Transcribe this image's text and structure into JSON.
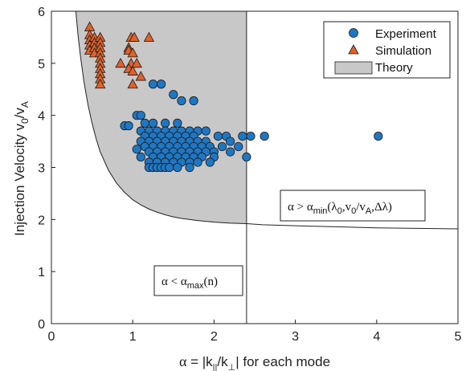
{
  "chart_data": {
    "type": "scatter",
    "xlabel": "α = |k||/k⊥| for each mode",
    "ylabel": "Injection Velocity v0/vA",
    "xlim": [
      0,
      5
    ],
    "ylim": [
      0,
      6
    ],
    "xticks": [
      "0",
      "1",
      "2",
      "3",
      "4",
      "5"
    ],
    "yticks": [
      "0",
      "1",
      "2",
      "3",
      "4",
      "5",
      "6"
    ],
    "grid": false,
    "legend_placement": "top-right",
    "legend": [
      "Experiment",
      "Simulation",
      "Theory"
    ],
    "colors": {
      "experiment_fill": "#1f77c4",
      "simulation_fill": "#e0622a",
      "theory_fill": "#c8c8c8",
      "edge": "#1a1a1a"
    },
    "theory_region": {
      "alpha_max": 2.4,
      "boundary_curve": {
        "alpha": [
          0.3,
          0.33,
          0.36,
          0.4,
          0.45,
          0.5,
          0.55,
          0.6,
          0.7,
          0.8,
          0.9,
          1.0,
          1.1,
          1.2,
          1.3,
          1.4,
          1.5,
          1.6,
          1.8,
          2.0,
          2.2,
          2.4,
          2.6,
          3.0,
          3.5,
          4.0,
          4.5,
          5.0
        ],
        "velocity": [
          6.0,
          5.5,
          5.1,
          4.65,
          4.2,
          3.85,
          3.55,
          3.3,
          2.95,
          2.7,
          2.52,
          2.38,
          2.28,
          2.2,
          2.14,
          2.09,
          2.05,
          2.02,
          1.98,
          1.95,
          1.93,
          1.92,
          1.9,
          1.88,
          1.86,
          1.84,
          1.83,
          1.82
        ]
      }
    },
    "annotations": [
      {
        "name": "alpha-min-label",
        "text": "α > αmin(λ0,v0/vA,Δλ)",
        "x": 3.75,
        "y": 2.0
      },
      {
        "name": "alpha-max-label",
        "text": "α < αmax(n)",
        "x": 1.8,
        "y": 0.65
      }
    ],
    "series": [
      {
        "name": "Experiment",
        "marker": "circle",
        "points": [
          [
            0.9,
            3.8
          ],
          [
            0.95,
            3.8
          ],
          [
            1.25,
            4.6
          ],
          [
            1.35,
            4.6
          ],
          [
            1.5,
            4.4
          ],
          [
            1.6,
            4.28
          ],
          [
            1.75,
            4.28
          ],
          [
            1.05,
            4.0
          ],
          [
            1.1,
            4.0
          ],
          [
            2.62,
            3.6
          ],
          [
            4.02,
            3.6
          ],
          [
            2.45,
            3.6
          ],
          [
            2.35,
            3.6
          ],
          [
            2.4,
            3.2
          ],
          [
            1.15,
            3.85
          ],
          [
            1.25,
            3.85
          ],
          [
            1.4,
            3.85
          ],
          [
            1.55,
            3.85
          ],
          [
            1.1,
            3.7
          ],
          [
            1.2,
            3.7
          ],
          [
            1.3,
            3.7
          ],
          [
            1.4,
            3.7
          ],
          [
            1.5,
            3.7
          ],
          [
            1.6,
            3.7
          ],
          [
            1.7,
            3.7
          ],
          [
            1.8,
            3.7
          ],
          [
            1.9,
            3.7
          ],
          [
            1.15,
            3.6
          ],
          [
            1.25,
            3.6
          ],
          [
            1.35,
            3.6
          ],
          [
            1.45,
            3.6
          ],
          [
            1.55,
            3.6
          ],
          [
            1.65,
            3.6
          ],
          [
            1.75,
            3.6
          ],
          [
            2.05,
            3.6
          ],
          [
            2.15,
            3.6
          ],
          [
            1.1,
            3.5
          ],
          [
            1.2,
            3.5
          ],
          [
            1.3,
            3.5
          ],
          [
            1.4,
            3.5
          ],
          [
            1.5,
            3.5
          ],
          [
            1.6,
            3.5
          ],
          [
            1.7,
            3.5
          ],
          [
            1.8,
            3.5
          ],
          [
            1.9,
            3.5
          ],
          [
            2.2,
            3.5
          ],
          [
            1.15,
            3.4
          ],
          [
            1.25,
            3.4
          ],
          [
            1.35,
            3.4
          ],
          [
            1.45,
            3.4
          ],
          [
            1.55,
            3.4
          ],
          [
            1.65,
            3.4
          ],
          [
            1.75,
            3.4
          ],
          [
            1.85,
            3.4
          ],
          [
            1.95,
            3.4
          ],
          [
            2.1,
            3.4
          ],
          [
            2.3,
            3.4
          ],
          [
            1.05,
            3.35
          ],
          [
            1.2,
            3.3
          ],
          [
            1.3,
            3.3
          ],
          [
            1.4,
            3.3
          ],
          [
            1.5,
            3.3
          ],
          [
            1.6,
            3.3
          ],
          [
            1.7,
            3.3
          ],
          [
            1.8,
            3.3
          ],
          [
            1.9,
            3.3
          ],
          [
            2.0,
            3.3
          ],
          [
            2.2,
            3.3
          ],
          [
            1.1,
            3.2
          ],
          [
            1.25,
            3.2
          ],
          [
            1.35,
            3.2
          ],
          [
            1.45,
            3.2
          ],
          [
            1.55,
            3.2
          ],
          [
            1.65,
            3.2
          ],
          [
            1.75,
            3.2
          ],
          [
            1.85,
            3.2
          ],
          [
            2.0,
            3.2
          ],
          [
            1.2,
            3.1
          ],
          [
            1.3,
            3.1
          ],
          [
            1.4,
            3.1
          ],
          [
            1.5,
            3.1
          ],
          [
            1.6,
            3.1
          ],
          [
            1.7,
            3.1
          ],
          [
            1.8,
            3.1
          ],
          [
            1.95,
            3.1
          ],
          [
            1.2,
            3.0
          ],
          [
            1.25,
            3.0
          ],
          [
            1.3,
            3.0
          ],
          [
            1.35,
            3.0
          ],
          [
            1.4,
            3.0
          ],
          [
            1.45,
            3.0
          ],
          [
            1.55,
            3.0
          ],
          [
            1.7,
            3.0
          ]
        ]
      },
      {
        "name": "Simulation",
        "marker": "triangle",
        "points": [
          [
            0.47,
            5.7
          ],
          [
            0.47,
            5.55
          ],
          [
            0.47,
            5.45
          ],
          [
            0.47,
            5.35
          ],
          [
            0.47,
            5.25
          ],
          [
            0.53,
            5.5
          ],
          [
            0.53,
            5.4
          ],
          [
            0.53,
            5.3
          ],
          [
            0.53,
            5.2
          ],
          [
            0.6,
            5.5
          ],
          [
            0.6,
            5.4
          ],
          [
            0.6,
            5.3
          ],
          [
            0.6,
            5.2
          ],
          [
            0.6,
            5.1
          ],
          [
            0.6,
            5.0
          ],
          [
            0.6,
            4.9
          ],
          [
            0.6,
            4.8
          ],
          [
            0.6,
            4.7
          ],
          [
            0.6,
            4.6
          ],
          [
            0.98,
            5.5
          ],
          [
            1.02,
            5.5
          ],
          [
            1.2,
            5.5
          ],
          [
            0.95,
            5.3
          ],
          [
            0.95,
            5.25
          ],
          [
            1.0,
            5.2
          ],
          [
            0.85,
            5.0
          ],
          [
            0.98,
            5.0
          ],
          [
            1.05,
            5.0
          ],
          [
            0.95,
            4.9
          ],
          [
            1.0,
            4.85
          ],
          [
            1.1,
            4.75
          ],
          [
            1.0,
            4.6
          ]
        ]
      }
    ]
  }
}
